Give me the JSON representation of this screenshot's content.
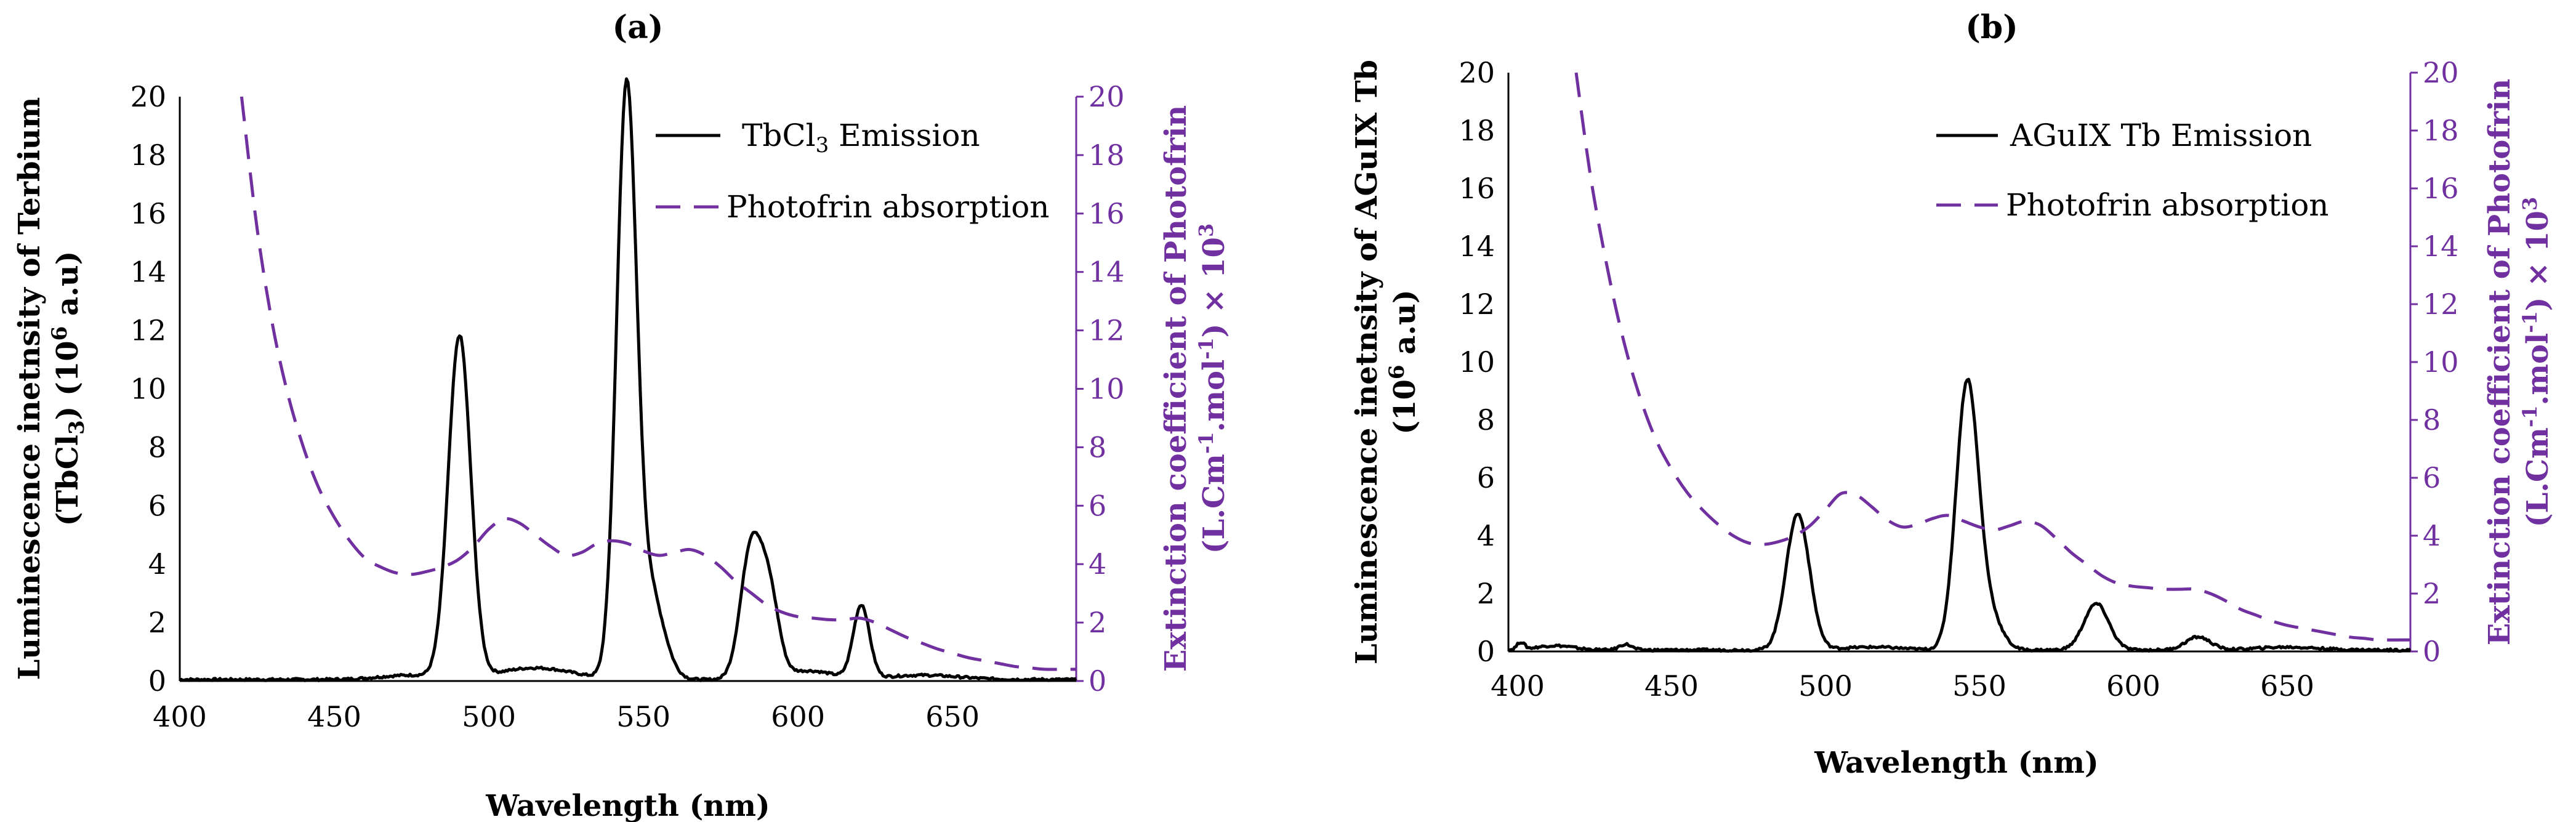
{
  "figure": {
    "background": "#ffffff"
  },
  "colors": {
    "emission": "#000000",
    "absorption": "#7030a0",
    "axis": "#000000"
  },
  "chart_data": [
    {
      "type": "line",
      "panel_label": "(a)",
      "xlabel": "Wavelength (nm)",
      "xlim": [
        400,
        690
      ],
      "xticks": [
        "400",
        "450",
        "500",
        "550",
        "600",
        "650"
      ],
      "ylabel_left": {
        "line1": "Luminescence inetnsity of Terbium",
        "line2_pre": "(TbCl",
        "line2_sub": "3",
        "line2_mid": ") (10",
        "line2_sup": "6",
        "line2_post": " a.u)"
      },
      "ylim_left": [
        0,
        20
      ],
      "yticks_left": [
        "0",
        "2",
        "4",
        "6",
        "8",
        "10",
        "12",
        "14",
        "16",
        "18",
        "20"
      ],
      "ylabel_right": {
        "line1": "Extinction coefficient of Photofrin",
        "line2_a": "(L.Cm",
        "line2_sup1": "-1",
        "line2_b": ".mol",
        "line2_sup2": "-1",
        "line2_c": ") × 10",
        "line2_sup3": "3"
      },
      "ylim_right": [
        0,
        20
      ],
      "yticks_right": [
        "0",
        "2",
        "4",
        "6",
        "8",
        "10",
        "12",
        "14",
        "16",
        "18",
        "20"
      ],
      "legend": {
        "emission_pre": "TbCl",
        "emission_sub": "3",
        "emission_post": " Emission",
        "absorption": "Photofrin absorption"
      },
      "series": [
        {
          "name": "TbCl3 Emission",
          "axis": "left",
          "baseline": 0.05,
          "peaks": [
            [
              490.5,
              11.7,
              3.6
            ],
            [
              544.5,
              19.8,
              3.2
            ],
            [
              552,
              3.0,
              4.5
            ],
            [
              585,
              4.6,
              3.5
            ],
            [
              591,
              2.5,
              3
            ],
            [
              620.5,
              2.5,
              2.6
            ]
          ],
          "shoulders": [
            [
              475,
              0.15,
              10
            ],
            [
              515,
              0.4,
              12
            ],
            [
              603,
              0.3,
              8
            ],
            [
              640,
              0.15,
              12
            ]
          ]
        },
        {
          "name": "Photofrin absorption",
          "axis": "right",
          "points": [
            [
              420,
              20
            ],
            [
              425,
              15.5
            ],
            [
              430,
              12.2
            ],
            [
              435,
              9.8
            ],
            [
              440,
              8.0
            ],
            [
              445,
              6.6
            ],
            [
              450,
              5.6
            ],
            [
              455,
              4.8
            ],
            [
              460,
              4.2
            ],
            [
              465,
              3.9
            ],
            [
              470,
              3.7
            ],
            [
              475,
              3.65
            ],
            [
              480,
              3.75
            ],
            [
              485,
              3.9
            ],
            [
              490,
              4.15
            ],
            [
              495,
              4.6
            ],
            [
              500,
              5.2
            ],
            [
              505,
              5.55
            ],
            [
              510,
              5.4
            ],
            [
              515,
              5.0
            ],
            [
              520,
              4.6
            ],
            [
              525,
              4.3
            ],
            [
              530,
              4.4
            ],
            [
              535,
              4.7
            ],
            [
              540,
              4.8
            ],
            [
              545,
              4.7
            ],
            [
              550,
              4.45
            ],
            [
              555,
              4.3
            ],
            [
              560,
              4.4
            ],
            [
              565,
              4.5
            ],
            [
              570,
              4.3
            ],
            [
              575,
              3.9
            ],
            [
              580,
              3.4
            ],
            [
              585,
              3.0
            ],
            [
              590,
              2.6
            ],
            [
              595,
              2.35
            ],
            [
              600,
              2.2
            ],
            [
              605,
              2.15
            ],
            [
              610,
              2.1
            ],
            [
              615,
              2.1
            ],
            [
              620,
              2.15
            ],
            [
              625,
              2.0
            ],
            [
              630,
              1.75
            ],
            [
              635,
              1.5
            ],
            [
              640,
              1.3
            ],
            [
              645,
              1.1
            ],
            [
              650,
              0.95
            ],
            [
              655,
              0.8
            ],
            [
              660,
              0.7
            ],
            [
              665,
              0.6
            ],
            [
              670,
              0.5
            ],
            [
              675,
              0.45
            ],
            [
              680,
              0.4
            ],
            [
              690,
              0.4
            ]
          ]
        }
      ]
    },
    {
      "type": "line",
      "panel_label": "(b)",
      "xlabel": "Wavelength (nm)",
      "xlim": [
        397,
        690
      ],
      "xticks": [
        "400",
        "450",
        "500",
        "550",
        "600",
        "650"
      ],
      "ylabel_left": {
        "line1": "Luminescence inetnsity of AGuIX Tb",
        "line2_pre": "(10",
        "line2_sup": "6",
        "line2_post": " a.u)"
      },
      "ylim_left": [
        0,
        20
      ],
      "yticks_left": [
        "0",
        "2",
        "4",
        "6",
        "8",
        "10",
        "12",
        "14",
        "16",
        "18",
        "20"
      ],
      "ylabel_right": {
        "line1": "Extinction coefficient of Photofrin",
        "line2_a": "(L.Cm",
        "line2_sup1": "-1",
        "line2_b": ".mol",
        "line2_sup2": "-1",
        "line2_c": ") × 10",
        "line2_sup3": "3"
      },
      "ylim_right": [
        0,
        20
      ],
      "yticks_right": [
        "0",
        "2",
        "4",
        "6",
        "8",
        "10",
        "12",
        "14",
        "16",
        "18",
        "20"
      ],
      "legend": {
        "emission": "AGuIX Tb Emission",
        "absorption": "Photofrin absorption"
      },
      "series": [
        {
          "name": "AGuIX Tb Emission",
          "axis": "left",
          "baseline": 0.05,
          "peaks": [
            [
              491,
              4.7,
              3.8
            ],
            [
              546,
              9.1,
              3.6
            ],
            [
              553,
              1.2,
              4
            ],
            [
              588,
              1.6,
              4
            ],
            [
              621,
              0.45,
              4
            ],
            [
              401,
              0.25,
              1.2
            ],
            [
              435,
              0.2,
              2
            ],
            [
              412,
              0.15,
              6
            ]
          ],
          "shoulders": [
            [
              515,
              0.1,
              10
            ],
            [
              650,
              0.1,
              10
            ]
          ]
        },
        {
          "name": "Photofrin absorption",
          "axis": "right",
          "points": [
            [
              419,
              20
            ],
            [
              424,
              16.2
            ],
            [
              430,
              12.8
            ],
            [
              435,
              10.5
            ],
            [
              440,
              8.7
            ],
            [
              445,
              7.3
            ],
            [
              450,
              6.3
            ],
            [
              455,
              5.5
            ],
            [
              460,
              4.9
            ],
            [
              465,
              4.4
            ],
            [
              470,
              4.0
            ],
            [
              475,
              3.75
            ],
            [
              480,
              3.7
            ],
            [
              485,
              3.8
            ],
            [
              490,
              4.0
            ],
            [
              495,
              4.35
            ],
            [
              500,
              4.9
            ],
            [
              505,
              5.45
            ],
            [
              510,
              5.4
            ],
            [
              515,
              5.0
            ],
            [
              520,
              4.55
            ],
            [
              525,
              4.3
            ],
            [
              530,
              4.4
            ],
            [
              535,
              4.6
            ],
            [
              540,
              4.7
            ],
            [
              545,
              4.5
            ],
            [
              550,
              4.3
            ],
            [
              555,
              4.2
            ],
            [
              560,
              4.35
            ],
            [
              565,
              4.5
            ],
            [
              570,
              4.35
            ],
            [
              575,
              3.9
            ],
            [
              580,
              3.4
            ],
            [
              585,
              3.0
            ],
            [
              590,
              2.6
            ],
            [
              595,
              2.35
            ],
            [
              600,
              2.25
            ],
            [
              605,
              2.2
            ],
            [
              610,
              2.15
            ],
            [
              615,
              2.15
            ],
            [
              620,
              2.15
            ],
            [
              625,
              2.0
            ],
            [
              630,
              1.75
            ],
            [
              635,
              1.45
            ],
            [
              640,
              1.25
            ],
            [
              645,
              1.05
            ],
            [
              650,
              0.9
            ],
            [
              655,
              0.8
            ],
            [
              660,
              0.7
            ],
            [
              665,
              0.6
            ],
            [
              670,
              0.5
            ],
            [
              675,
              0.45
            ],
            [
              680,
              0.4
            ],
            [
              690,
              0.4
            ]
          ]
        }
      ]
    }
  ]
}
